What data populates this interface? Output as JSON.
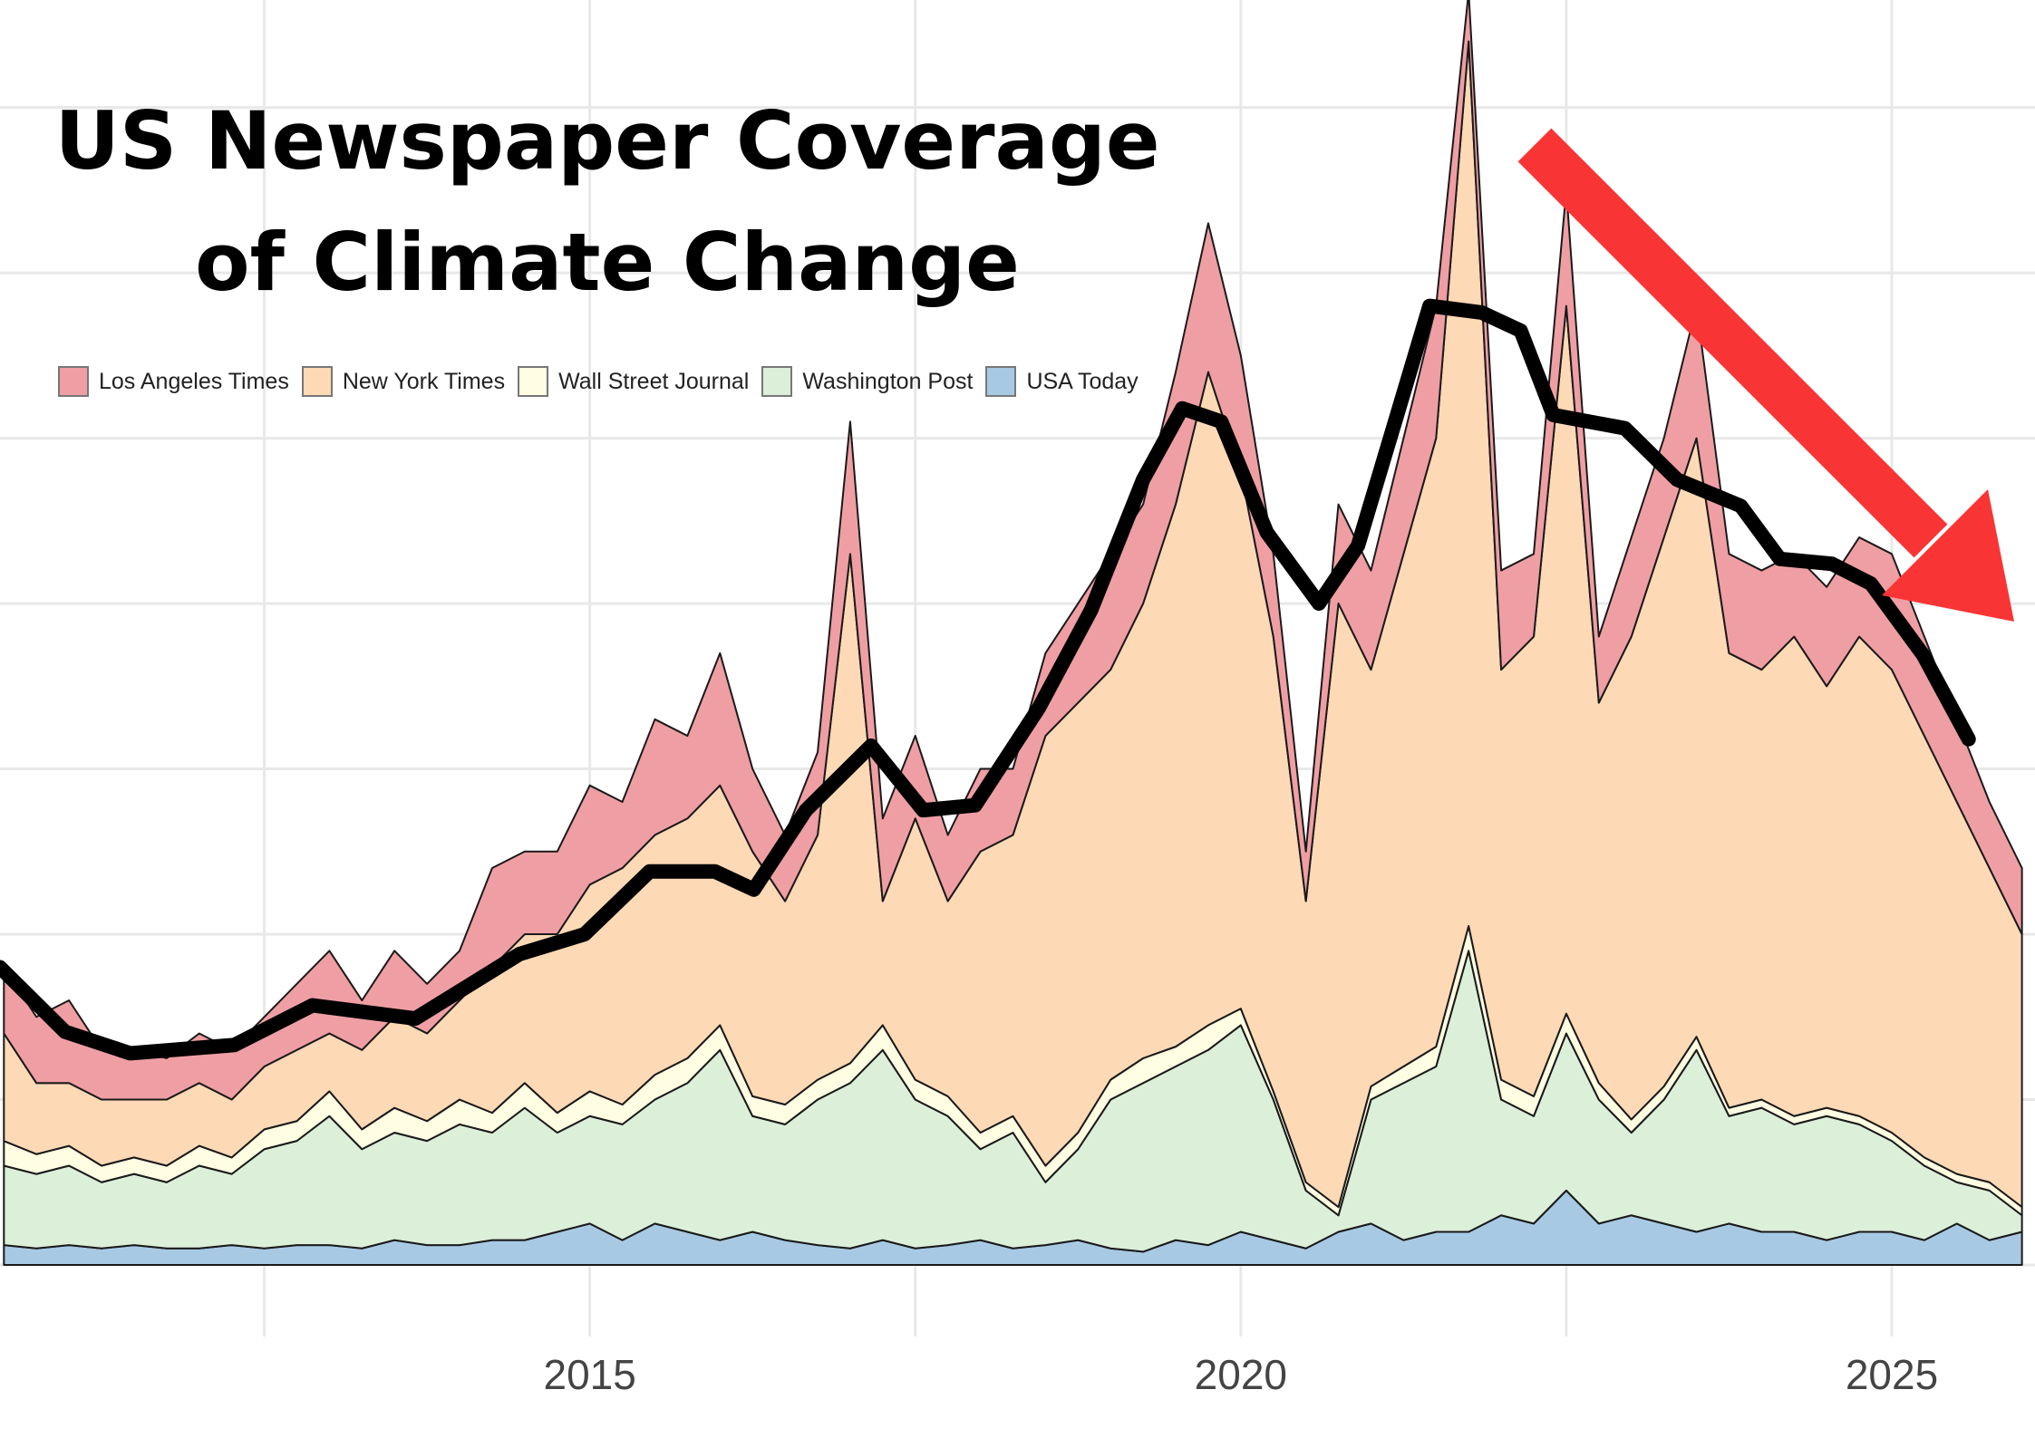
{
  "chart_data": {
    "type": "area",
    "stacked": true,
    "title": "US Newspaper Coverage of Climate Change",
    "title_lines": [
      "US Newspaper Coverage",
      "of Climate Change"
    ],
    "xlabel": "",
    "ylabel": "",
    "xlim": [
      2010.47,
      2026.1
    ],
    "ylim": [
      0,
      7.65
    ],
    "x_ticks": [
      2015,
      2020,
      2025
    ],
    "x_tick_labels": [
      "2015",
      "2020",
      "2025"
    ],
    "grid": true,
    "legend_position": "top-left",
    "x": [
      2010.5,
      2010.75,
      2011,
      2011.25,
      2011.5,
      2011.75,
      2012,
      2012.25,
      2012.5,
      2012.75,
      2013,
      2013.25,
      2013.5,
      2013.75,
      2014,
      2014.25,
      2014.5,
      2014.75,
      2015,
      2015.25,
      2015.5,
      2015.75,
      2016,
      2016.25,
      2016.5,
      2016.75,
      2017,
      2017.25,
      2017.5,
      2017.75,
      2018,
      2018.25,
      2018.5,
      2018.75,
      2019,
      2019.25,
      2019.5,
      2019.75,
      2020,
      2020.25,
      2020.5,
      2020.75,
      2021,
      2021.25,
      2021.5,
      2021.75,
      2022,
      2022.25,
      2022.5,
      2022.75,
      2023,
      2023.25,
      2023.5,
      2023.75,
      2024,
      2024.25,
      2024.5,
      2024.75,
      2025,
      2025.25,
      2025.5,
      2025.75,
      2026
    ],
    "series": [
      {
        "name": "USA Today",
        "color": "#a8c9e4",
        "values": [
          0.12,
          0.1,
          0.12,
          0.1,
          0.12,
          0.1,
          0.1,
          0.12,
          0.1,
          0.12,
          0.12,
          0.1,
          0.15,
          0.12,
          0.12,
          0.15,
          0.15,
          0.2,
          0.25,
          0.15,
          0.25,
          0.2,
          0.15,
          0.2,
          0.15,
          0.12,
          0.1,
          0.15,
          0.1,
          0.12,
          0.15,
          0.1,
          0.12,
          0.15,
          0.1,
          0.08,
          0.15,
          0.12,
          0.2,
          0.15,
          0.1,
          0.2,
          0.25,
          0.15,
          0.2,
          0.2,
          0.3,
          0.25,
          0.45,
          0.25,
          0.3,
          0.25,
          0.2,
          0.25,
          0.2,
          0.2,
          0.15,
          0.2,
          0.2,
          0.15,
          0.25,
          0.15,
          0.2
        ]
      },
      {
        "name": "Washington Post",
        "color": "#dcefd9",
        "values": [
          0.48,
          0.45,
          0.48,
          0.4,
          0.43,
          0.4,
          0.5,
          0.43,
          0.6,
          0.63,
          0.78,
          0.6,
          0.65,
          0.63,
          0.73,
          0.65,
          0.8,
          0.6,
          0.65,
          0.7,
          0.75,
          0.9,
          1.15,
          0.7,
          0.7,
          0.88,
          1.0,
          1.15,
          0.9,
          0.78,
          0.55,
          0.7,
          0.38,
          0.55,
          0.9,
          1.02,
          1.05,
          1.18,
          1.25,
          0.85,
          0.35,
          0.1,
          0.75,
          0.95,
          1.0,
          1.7,
          0.7,
          0.65,
          0.95,
          0.75,
          0.5,
          0.75,
          1.1,
          0.65,
          0.75,
          0.65,
          0.75,
          0.65,
          0.55,
          0.45,
          0.25,
          0.3,
          0.1
        ]
      },
      {
        "name": "Wall Street Journal",
        "color": "#fffde2",
        "values": [
          0.15,
          0.12,
          0.12,
          0.1,
          0.1,
          0.1,
          0.12,
          0.1,
          0.12,
          0.12,
          0.15,
          0.12,
          0.15,
          0.12,
          0.15,
          0.12,
          0.15,
          0.12,
          0.15,
          0.12,
          0.15,
          0.15,
          0.15,
          0.12,
          0.12,
          0.12,
          0.12,
          0.15,
          0.12,
          0.12,
          0.1,
          0.1,
          0.1,
          0.1,
          0.12,
          0.15,
          0.12,
          0.15,
          0.1,
          0.05,
          0.05,
          0.05,
          0.08,
          0.1,
          0.12,
          0.15,
          0.12,
          0.12,
          0.12,
          0.1,
          0.08,
          0.08,
          0.08,
          0.05,
          0.05,
          0.05,
          0.05,
          0.05,
          0.05,
          0.05,
          0.05,
          0.05,
          0.05
        ]
      },
      {
        "name": "New York Times",
        "color": "#fdd9b6",
        "values": [
          0.65,
          0.43,
          0.38,
          0.4,
          0.35,
          0.4,
          0.38,
          0.35,
          0.38,
          0.43,
          0.35,
          0.48,
          0.55,
          0.53,
          0.6,
          0.88,
          0.9,
          1.08,
          1.25,
          1.43,
          1.45,
          1.45,
          1.45,
          1.48,
          1.23,
          1.48,
          3.08,
          0.75,
          1.58,
          1.18,
          1.7,
          1.7,
          2.6,
          2.6,
          2.48,
          2.75,
          3.28,
          3.95,
          3.25,
          2.75,
          1.7,
          3.65,
          2.52,
          3.1,
          3.68,
          5.35,
          2.48,
          2.78,
          4.28,
          2.3,
          2.92,
          3.32,
          3.62,
          2.75,
          2.6,
          2.9,
          2.55,
          2.9,
          2.8,
          2.55,
          2.25,
          1.9,
          1.65
        ]
      },
      {
        "name": "Los Angeles Times",
        "color": "#ef9fa4",
        "values": [
          0.4,
          0.4,
          0.5,
          0.3,
          0.3,
          0.25,
          0.3,
          0.3,
          0.3,
          0.4,
          0.5,
          0.3,
          0.4,
          0.3,
          0.3,
          0.6,
          0.5,
          0.5,
          0.6,
          0.4,
          0.7,
          0.5,
          0.8,
          0.5,
          0.4,
          0.5,
          0.8,
          0.5,
          0.5,
          0.4,
          0.5,
          0.4,
          0.5,
          0.6,
          0.7,
          0.6,
          0.8,
          0.9,
          0.7,
          0.5,
          0.3,
          0.6,
          0.6,
          0.7,
          0.8,
          0.3,
          0.6,
          0.5,
          0.7,
          0.4,
          0.6,
          0.6,
          0.8,
          0.6,
          0.6,
          0.5,
          0.6,
          0.6,
          0.7,
          0.6,
          0.5,
          0.4,
          0.4
        ]
      }
    ],
    "legend_order": [
      "Los Angeles Times",
      "New York Times",
      "Wall Street Journal",
      "Washington Post",
      "USA Today"
    ],
    "trend_line": {
      "color": "#000000",
      "x": [
        2010.47,
        2010.97,
        2011.47,
        2012.27,
        2012.87,
        2013.66,
        2014.46,
        2014.96,
        2015.46,
        2015.96,
        2016.26,
        2016.66,
        2017.16,
        2017.56,
        2017.96,
        2018.45,
        2018.85,
        2019.25,
        2019.55,
        2019.85,
        2020.2,
        2020.6,
        2020.9,
        2021.2,
        2021.45,
        2021.85,
        2022.15,
        2022.4,
        2022.95,
        2023.35,
        2023.84,
        2024.14,
        2024.54,
        2024.84,
        2025.24,
        2025.59
      ],
      "y": [
        1.8,
        1.41,
        1.28,
        1.33,
        1.57,
        1.49,
        1.88,
        2.0,
        2.38,
        2.38,
        2.27,
        2.75,
        3.14,
        2.75,
        2.78,
        3.37,
        3.96,
        4.75,
        5.18,
        5.1,
        4.43,
        4.0,
        4.35,
        5.14,
        5.8,
        5.76,
        5.65,
        5.14,
        5.06,
        4.75,
        4.59,
        4.27,
        4.24,
        4.12,
        3.69,
        3.18
      ]
    },
    "annotation": {
      "type": "arrow",
      "direction": "down-right",
      "color": "#f93434"
    }
  }
}
